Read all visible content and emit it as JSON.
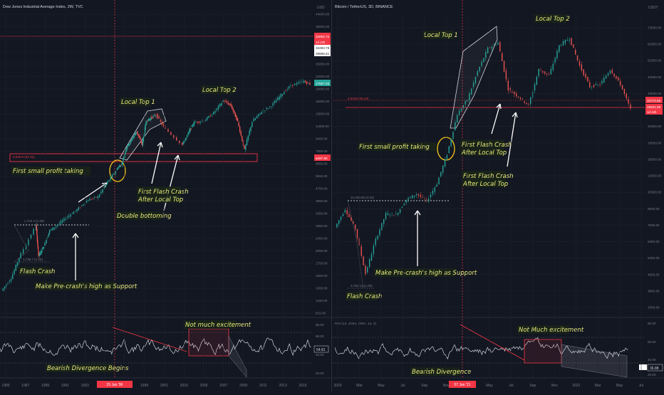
{
  "colors": {
    "bg": "#131722",
    "grid": "#1e222d",
    "axis": "#787b86",
    "price": "#d1d4dc",
    "up": "#26a69a",
    "down": "#ef5350",
    "annotation": "#e9ec7a",
    "annotation_bg": "#1a2418",
    "line": "#ffffff",
    "highlight": "#f23645",
    "circle": "#f5c518"
  },
  "left": {
    "symbol": "Dow Jones Industrial Average Index, 2W, TVC",
    "axis_label": "USD",
    "price_ticks": [
      "44000.00",
      "38000.00",
      "32000.00",
      "28000.00",
      "25000.00",
      "22000.00",
      "19000.00",
      "16000.00",
      "13000.00",
      "11000.00",
      "9400.00",
      "7800.00",
      "6550.00",
      "5550.00",
      "4750.00",
      "3950.00",
      "3350.00",
      "2850.00",
      "2450.00",
      "2050.00",
      "1750.00",
      "1550.00",
      "1300.00",
      "1100.00",
      "815.00"
    ],
    "price_tags": {
      "top_red": "33955.70",
      "top_red_sub": "1d 12h",
      "mid": "32293.78",
      "mid2": "29806.51",
      "last": "17807.26",
      "support": "6487.80"
    },
    "time_ticks": [
      "1985",
      "1987",
      "1989",
      "1991",
      "1993",
      "1995",
      "1997",
      "1999",
      "2001",
      "2003",
      "2005",
      "2007",
      "2009",
      "2011",
      "2013",
      "2015"
    ],
    "time_highlight": "29 Jan '96",
    "level_label": "6,546.8 (31.31)",
    "precrash_label": "2,722.4 (1.58)",
    "crash_label": "1,738.7 (1.25)",
    "annotations": {
      "local_top_1": "Local Top 1",
      "local_top_2": "Local Top 2",
      "first_profit": "First small profit taking",
      "first_flash_1": "First Flash Crash",
      "first_flash_2": "After Local Top",
      "double_bottom": "Double bottoming",
      "flash_crash": "Flash Crash",
      "support": "Make Pre-crash's high as Support",
      "not_much": "Not much excitement",
      "bearish": "Bearish Divergence Begins"
    },
    "rsi_value": "54.81",
    "rsi_ticks": [
      "80.00",
      "60.00",
      "40.00",
      "20.00"
    ]
  },
  "right": {
    "symbol": "Bitcoin / TetherUS, 3D, BINANCE",
    "axis_label": "USDT",
    "price_ticks": [
      "73000.00",
      "62000.00",
      "52000.00",
      "40000.00",
      "33000.00",
      "28000.00",
      "22500.00",
      "19500.00",
      "16500.00",
      "13500.00",
      "10900.00",
      "9000.00",
      "7500.00",
      "6250.00",
      "5250.00",
      "4500.00",
      "3850.00",
      "3300.00"
    ],
    "price_tags": {
      "top_red": "33770.95",
      "top_red2": "29631.95",
      "top_red2_sub": "1d 14h"
    },
    "time_ticks": [
      "2020",
      "Mar",
      "May",
      "Jul",
      "Sep",
      "Nov",
      "Mar",
      "May",
      "Jul",
      "Sep",
      "Nov",
      "2022",
      "Mar",
      "May",
      "Jul"
    ],
    "time_highlight": "07 Jan '21",
    "level_label": "4.0443 (26.13)",
    "precrash_label": "10,469.85 (4.04)",
    "crash_label": "3,782.13 (1.00)",
    "annotations": {
      "local_top_1": "Local Top 1",
      "local_top_2": "Local Top 2",
      "first_profit": "First small profit taking",
      "first_flash_a1": "First Flash Crash",
      "first_flash_a2": "After Local Top",
      "first_flash_b1": "First Flash Crash",
      "first_flash_b2": "After Local Top",
      "flash_crash": "Flash Crash",
      "support": "Make Pre-crash's high as Support",
      "not_much": "Not Much excitement",
      "bearish": "Bearish Divergence"
    },
    "rsi_header": "RSI (14, close, SMA, 14, 2)",
    "rsi_value": "36.88",
    "rsi_ticks": [
      "80.00",
      "60.00",
      "40.00",
      "20.00"
    ]
  },
  "chart_data": [
    {
      "type": "candlestick",
      "title": "Dow Jones Industrial Average Index, 2W, TVC",
      "ylabel": "USD",
      "yscale": "log",
      "ylim": [
        815,
        44000
      ],
      "series": [
        {
          "name": "DJI",
          "x": [
            1984,
            1985,
            1986,
            1987.6,
            1987.85,
            1988.5,
            1989,
            1990,
            1991,
            1992,
            1993,
            1994,
            1995,
            1996,
            1996.5,
            1997,
            1997.5,
            1998,
            1998.6,
            1999,
            1999.5,
            2000,
            2001,
            2002.75,
            2003.5,
            2004,
            2005,
            2006,
            2007,
            2007.8,
            2008.5,
            2009.2,
            2010,
            2011,
            2012,
            2013,
            2014,
            2015.3,
            2016
          ],
          "values": [
            1100,
            1300,
            1800,
            2650,
            1750,
            2050,
            2450,
            2700,
            3000,
            3300,
            3700,
            3850,
            4700,
            5600,
            6000,
            7500,
            8200,
            9200,
            7700,
            10500,
            11000,
            11500,
            9500,
            7700,
            9300,
            10400,
            10600,
            11800,
            13900,
            13000,
            10500,
            7200,
            10500,
            12000,
            13000,
            15000,
            17000,
            18000,
            17300
          ]
        }
      ]
    },
    {
      "type": "candlestick",
      "title": "Bitcoin / TetherUS, 3D, BINANCE",
      "ylabel": "USDT",
      "yscale": "log",
      "ylim": [
        3300,
        73000
      ],
      "series": [
        {
          "name": "BTCUSDT",
          "x": [
            "2020-01",
            "2020-02",
            "2020-03-10",
            "2020-03-13",
            "2020-04",
            "2020-05",
            "2020-06",
            "2020-07",
            "2020-08",
            "2020-09",
            "2020-10",
            "2020-11",
            "2020-12",
            "2021-01",
            "2021-02",
            "2021-03",
            "2021-04",
            "2021-05",
            "2021-06",
            "2021-07",
            "2021-08",
            "2021-09",
            "2021-10",
            "2021-11",
            "2021-12",
            "2022-01",
            "2022-02",
            "2022-03",
            "2022-04",
            "2022-05"
          ],
          "values": [
            8000,
            9800,
            7900,
            4800,
            7000,
            9300,
            9200,
            10900,
            11600,
            10700,
            13000,
            18000,
            28000,
            33000,
            45000,
            58000,
            62000,
            37000,
            34000,
            31000,
            46000,
            43000,
            60000,
            65000,
            48000,
            38000,
            39000,
            46000,
            39000,
            29600
          ]
        }
      ]
    }
  ]
}
